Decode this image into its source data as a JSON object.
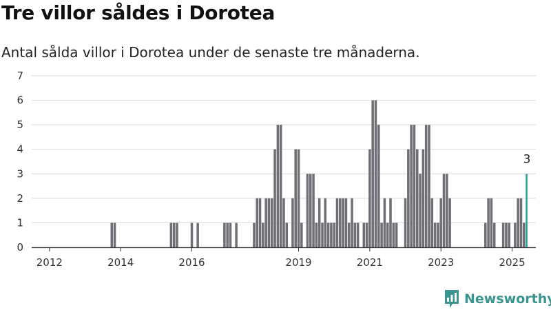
{
  "title": "Tre villor såldes i Dorotea",
  "subtitle": "Antal sålda villor i Dorotea under de senaste tre månaderna.",
  "brand": {
    "name": "Newsworthy",
    "icon": "newsworthy-logo-icon",
    "color": "#3a948f"
  },
  "colors": {
    "bar": "#6f6f75",
    "highlight": "#21a39a",
    "grid": "#d9d9d9",
    "axis": "#333333"
  },
  "chart_data": {
    "type": "bar",
    "title": "Tre villor såldes i Dorotea",
    "subtitle": "Antal sålda villor i Dorotea under de senaste tre månaderna.",
    "xlabel": "",
    "ylabel": "",
    "ylim": [
      0,
      7
    ],
    "y_ticks": [
      0,
      1,
      2,
      3,
      4,
      5,
      6,
      7
    ],
    "x_range": [
      "2011-07",
      "2025-09"
    ],
    "x_ticks": [
      {
        "date": "2012-01",
        "label": "2012"
      },
      {
        "date": "2014-01",
        "label": "2014"
      },
      {
        "date": "2016-01",
        "label": "2016"
      },
      {
        "date": "2019-01",
        "label": "2019"
      },
      {
        "date": "2021-01",
        "label": "2021"
      },
      {
        "date": "2023-01",
        "label": "2023"
      },
      {
        "date": "2025-01",
        "label": "2025"
      }
    ],
    "grid": "horizontal",
    "annotation": {
      "date": "2025-06",
      "text": "3"
    },
    "series": [
      {
        "values": [
          {
            "x": "2013-10",
            "y": 1
          },
          {
            "x": "2013-11",
            "y": 1
          },
          {
            "x": "2015-06",
            "y": 1
          },
          {
            "x": "2015-07",
            "y": 1
          },
          {
            "x": "2015-08",
            "y": 1
          },
          {
            "x": "2016-01",
            "y": 1
          },
          {
            "x": "2016-03",
            "y": 1
          },
          {
            "x": "2016-12",
            "y": 1
          },
          {
            "x": "2017-01",
            "y": 1
          },
          {
            "x": "2017-02",
            "y": 1
          },
          {
            "x": "2017-04",
            "y": 1
          },
          {
            "x": "2017-10",
            "y": 1
          },
          {
            "x": "2017-11",
            "y": 2
          },
          {
            "x": "2017-12",
            "y": 2
          },
          {
            "x": "2018-01",
            "y": 1
          },
          {
            "x": "2018-02",
            "y": 2
          },
          {
            "x": "2018-03",
            "y": 2
          },
          {
            "x": "2018-04",
            "y": 2
          },
          {
            "x": "2018-05",
            "y": 4
          },
          {
            "x": "2018-06",
            "y": 5
          },
          {
            "x": "2018-07",
            "y": 5
          },
          {
            "x": "2018-08",
            "y": 2
          },
          {
            "x": "2018-09",
            "y": 1
          },
          {
            "x": "2018-11",
            "y": 2
          },
          {
            "x": "2018-12",
            "y": 4
          },
          {
            "x": "2019-01",
            "y": 4
          },
          {
            "x": "2019-02",
            "y": 1
          },
          {
            "x": "2019-04",
            "y": 3
          },
          {
            "x": "2019-05",
            "y": 3
          },
          {
            "x": "2019-06",
            "y": 3
          },
          {
            "x": "2019-07",
            "y": 1
          },
          {
            "x": "2019-08",
            "y": 2
          },
          {
            "x": "2019-09",
            "y": 1
          },
          {
            "x": "2019-10",
            "y": 2
          },
          {
            "x": "2019-11",
            "y": 1
          },
          {
            "x": "2019-12",
            "y": 1
          },
          {
            "x": "2020-01",
            "y": 1
          },
          {
            "x": "2020-02",
            "y": 2
          },
          {
            "x": "2020-03",
            "y": 2
          },
          {
            "x": "2020-04",
            "y": 2
          },
          {
            "x": "2020-05",
            "y": 2
          },
          {
            "x": "2020-06",
            "y": 1
          },
          {
            "x": "2020-07",
            "y": 2
          },
          {
            "x": "2020-08",
            "y": 1
          },
          {
            "x": "2020-09",
            "y": 1
          },
          {
            "x": "2020-11",
            "y": 1
          },
          {
            "x": "2020-12",
            "y": 1
          },
          {
            "x": "2021-01",
            "y": 4
          },
          {
            "x": "2021-02",
            "y": 6
          },
          {
            "x": "2021-03",
            "y": 6
          },
          {
            "x": "2021-04",
            "y": 5
          },
          {
            "x": "2021-05",
            "y": 1
          },
          {
            "x": "2021-06",
            "y": 2
          },
          {
            "x": "2021-07",
            "y": 1
          },
          {
            "x": "2021-08",
            "y": 2
          },
          {
            "x": "2021-09",
            "y": 1
          },
          {
            "x": "2021-10",
            "y": 1
          },
          {
            "x": "2022-01",
            "y": 2
          },
          {
            "x": "2022-02",
            "y": 4
          },
          {
            "x": "2022-03",
            "y": 5
          },
          {
            "x": "2022-04",
            "y": 5
          },
          {
            "x": "2022-05",
            "y": 4
          },
          {
            "x": "2022-06",
            "y": 3
          },
          {
            "x": "2022-07",
            "y": 4
          },
          {
            "x": "2022-08",
            "y": 5
          },
          {
            "x": "2022-09",
            "y": 5
          },
          {
            "x": "2022-10",
            "y": 2
          },
          {
            "x": "2022-11",
            "y": 1
          },
          {
            "x": "2022-12",
            "y": 1
          },
          {
            "x": "2023-01",
            "y": 2
          },
          {
            "x": "2023-02",
            "y": 3
          },
          {
            "x": "2023-03",
            "y": 3
          },
          {
            "x": "2023-04",
            "y": 2
          },
          {
            "x": "2024-04",
            "y": 1
          },
          {
            "x": "2024-05",
            "y": 2
          },
          {
            "x": "2024-06",
            "y": 2
          },
          {
            "x": "2024-07",
            "y": 1
          },
          {
            "x": "2024-10",
            "y": 1
          },
          {
            "x": "2024-11",
            "y": 1
          },
          {
            "x": "2024-12",
            "y": 1
          },
          {
            "x": "2025-02",
            "y": 1
          },
          {
            "x": "2025-03",
            "y": 2
          },
          {
            "x": "2025-04",
            "y": 2
          },
          {
            "x": "2025-05",
            "y": 1
          },
          {
            "x": "2025-06",
            "y": 3,
            "highlight": true
          }
        ]
      }
    ]
  }
}
